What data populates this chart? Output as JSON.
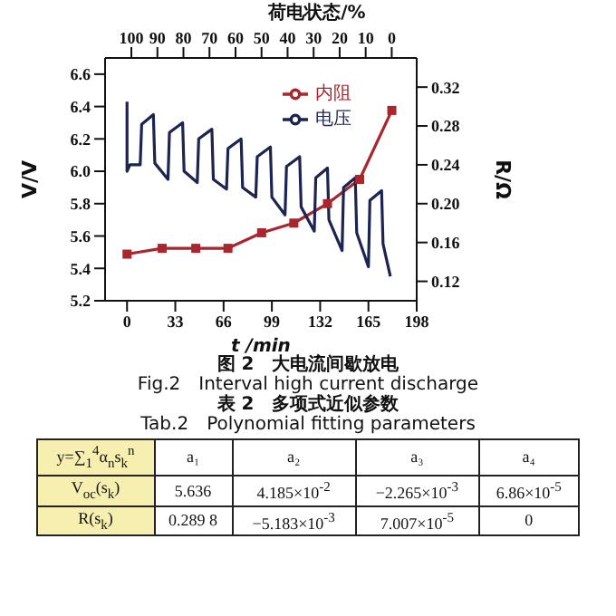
{
  "chart_data": {
    "type": "line",
    "x2label": "荷电状态/%",
    "xlabel": "t /min",
    "ylabel": "V/V",
    "y2label": "R/Ω",
    "xlim": [
      -15,
      198
    ],
    "xticks": [
      0,
      33,
      66,
      99,
      132,
      165,
      198
    ],
    "x2lim": [
      110.1,
      -9.6
    ],
    "x2ticks": [
      100,
      90,
      80,
      70,
      60,
      50,
      40,
      30,
      20,
      10,
      0
    ],
    "ylim": [
      5.2,
      6.7
    ],
    "yticks": [
      5.2,
      5.4,
      5.6,
      5.8,
      {
        "value": 6,
        "label": "6.0"
      },
      6.2,
      6.4,
      6.6
    ],
    "y2lim": [
      0.1,
      0.35
    ],
    "y2ticks": [
      0.12,
      0.16,
      {
        "value": 0.2,
        "label": "0.20"
      },
      0.24,
      0.28,
      0.32
    ],
    "legend": "top right",
    "grid": false,
    "series": [
      {
        "name": "内阻",
        "color": "#a8262c",
        "axis": "y2",
        "marker": "square",
        "x": [
          0,
          24,
          47,
          69,
          92,
          114,
          137,
          159,
          181
        ],
        "values": [
          0.148,
          0.154,
          0.154,
          0.154,
          0.17,
          0.18,
          0.2,
          0.225,
          0.296
        ]
      },
      {
        "name": "电压",
        "color": "#1c2450",
        "axis": "y",
        "marker": "none",
        "x": [
          0,
          0,
          2,
          9,
          10,
          18,
          19,
          28,
          29,
          38,
          39,
          48,
          49,
          58,
          59,
          68,
          69,
          78,
          79,
          88,
          89,
          98,
          99,
          108,
          109,
          118,
          119,
          128,
          129,
          137,
          138,
          147,
          148,
          156,
          157,
          165,
          166,
          174,
          175,
          180
        ],
        "values": [
          6.43,
          6.0,
          6.04,
          6.04,
          6.29,
          6.35,
          6.05,
          5.95,
          6.24,
          6.3,
          6.0,
          5.93,
          6.2,
          6.26,
          5.95,
          5.89,
          6.14,
          6.2,
          5.9,
          5.84,
          6.09,
          6.15,
          5.84,
          5.73,
          6.03,
          6.09,
          5.78,
          5.63,
          5.96,
          6.02,
          5.7,
          5.51,
          5.9,
          5.96,
          5.62,
          5.41,
          5.82,
          5.88,
          5.55,
          5.35
        ]
      }
    ],
    "annotations": [
      "图 2　大电流间歇放电",
      "Fig.2　Interval high current discharge",
      "表 2　多项式近似参数",
      "Tab.2　Polynomial fitting parameters",
      "y=∑$_{1}$$^{4}$α$_{n}$s$_{k}$$^{n}$",
      "a₁",
      "a₂",
      "a₃",
      "a₄",
      "V$_{oc}$(s$_{k}$)",
      "5.636",
      "4.185×10$^{-2}$",
      "−2.265×10$^{-3}$",
      "6.86×10$^{-5}$",
      "R(s$_{k}$)",
      "0.289 8",
      "−5.183×10$^{-3}$",
      "7.007×10$^{-5}$",
      "0"
    ]
  }
}
